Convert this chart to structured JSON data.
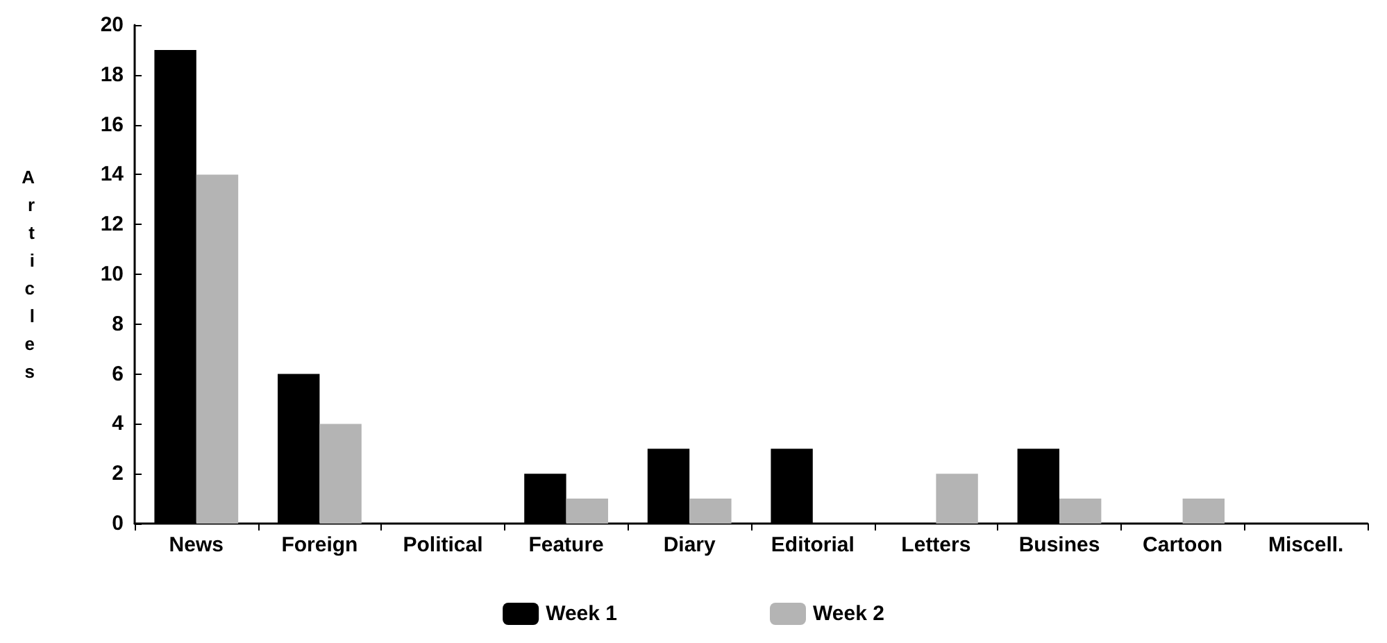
{
  "chart_data": {
    "type": "bar",
    "ylabel": "Articles",
    "categories": [
      "News",
      "Foreign",
      "Political",
      "Feature",
      "Diary",
      "Editorial",
      "Letters",
      "Busines",
      "Cartoon",
      "Miscell."
    ],
    "series": [
      {
        "name": "Week 1",
        "color": "#000000",
        "values": [
          19,
          6,
          0,
          2,
          3,
          3,
          0,
          3,
          0,
          0
        ]
      },
      {
        "name": "Week 2",
        "color": "#b4b4b4",
        "values": [
          14,
          4,
          0,
          1,
          1,
          0,
          2,
          1,
          1,
          0
        ]
      }
    ],
    "ylim": [
      0,
      20
    ],
    "yticks": [
      0,
      2,
      4,
      6,
      8,
      10,
      12,
      14,
      16,
      18,
      20
    ],
    "grid": false,
    "legend": "bottom"
  }
}
